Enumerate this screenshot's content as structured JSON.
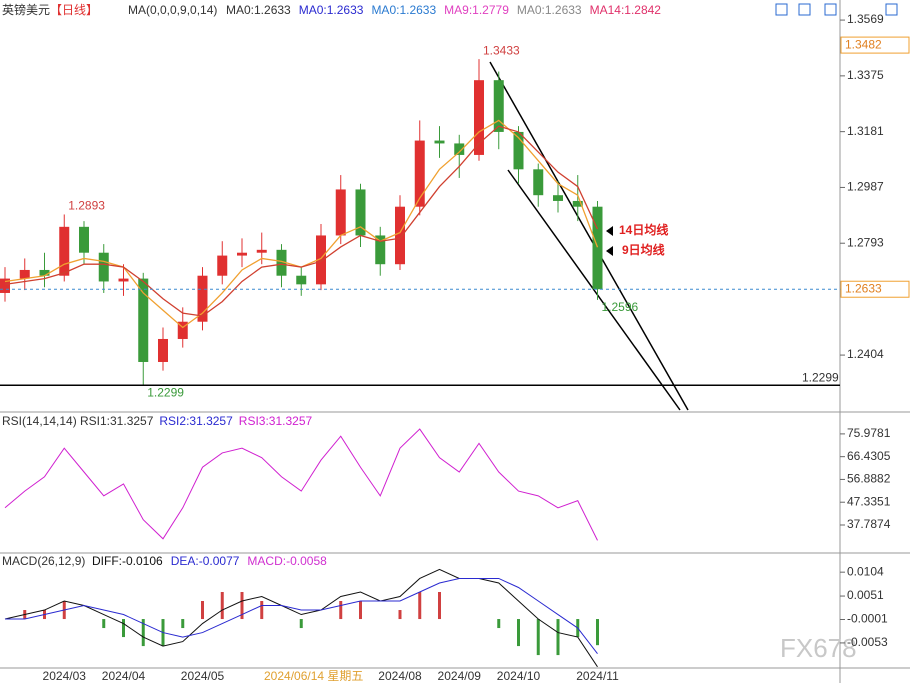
{
  "header": {
    "symbol": "英镑美元",
    "period": "【日线】",
    "watermark": "FX678"
  },
  "chart_data": [
    {
      "type": "candlestick",
      "ma_label": "MA(0,0,0,9,0,14)",
      "ma_texts": [
        "MA0:1.2633",
        "MA0:1.2633",
        "MA0:1.2633",
        "MA9:1.2779",
        "MA0:1.2633",
        "MA14:1.2842"
      ],
      "ma_text_colors": [
        "#333333",
        "#2a2ad0",
        "#2a7ad0",
        "#e040c0",
        "#888888",
        "#e0306a"
      ],
      "categories": [
        null,
        null,
        null,
        "2024/03",
        null,
        null,
        "2024/04",
        null,
        null,
        null,
        "2024/05",
        null,
        null,
        null,
        null,
        null,
        null,
        null,
        null,
        null,
        "2024/08",
        null,
        null,
        "2024/09",
        null,
        null,
        "2024/10",
        null,
        null,
        null,
        "2024/11"
      ],
      "open": [
        1.262,
        1.267,
        1.27,
        1.268,
        1.285,
        1.276,
        1.266,
        1.267,
        1.238,
        1.246,
        1.252,
        1.268,
        1.275,
        1.276,
        1.277,
        1.268,
        1.265,
        1.282,
        1.298,
        1.282,
        1.272,
        1.292,
        1.315,
        1.314,
        1.31,
        1.336,
        1.318,
        1.305,
        1.296,
        1.294,
        1.292
      ],
      "high": [
        1.271,
        1.274,
        1.276,
        1.2893,
        1.287,
        1.279,
        1.272,
        1.269,
        1.25,
        1.257,
        1.271,
        1.28,
        1.281,
        1.283,
        1.279,
        1.271,
        1.286,
        1.303,
        1.3,
        1.285,
        1.296,
        1.322,
        1.32,
        1.317,
        1.3433,
        1.339,
        1.32,
        1.307,
        1.301,
        1.303,
        1.294
      ],
      "low": [
        1.259,
        1.263,
        1.264,
        1.266,
        1.272,
        1.262,
        1.261,
        1.2299,
        1.235,
        1.243,
        1.249,
        1.265,
        1.271,
        1.272,
        1.264,
        1.261,
        1.263,
        1.279,
        1.278,
        1.268,
        1.27,
        1.289,
        1.309,
        1.302,
        1.308,
        1.312,
        1.3,
        1.292,
        1.29,
        1.287,
        1.2596
      ],
      "close": [
        1.267,
        1.27,
        1.268,
        1.285,
        1.276,
        1.266,
        1.267,
        1.238,
        1.246,
        1.252,
        1.268,
        1.275,
        1.276,
        1.277,
        1.268,
        1.265,
        1.282,
        1.298,
        1.282,
        1.272,
        1.292,
        1.315,
        1.314,
        1.31,
        1.336,
        1.318,
        1.305,
        1.296,
        1.294,
        1.292,
        1.2633
      ],
      "up_color": "#e03030",
      "down_color": "#3a9a3a",
      "series": [
        {
          "name": "9日均线",
          "color": "#f0a030",
          "values": [
            1.266,
            1.267,
            1.268,
            1.272,
            1.274,
            1.273,
            1.271,
            1.262,
            1.256,
            1.25,
            1.255,
            1.262,
            1.27,
            1.274,
            1.273,
            1.271,
            1.274,
            1.282,
            1.285,
            1.28,
            1.283,
            1.295,
            1.305,
            1.311,
            1.318,
            1.322,
            1.316,
            1.308,
            1.3,
            1.296,
            1.2779
          ]
        },
        {
          "name": "14日均线",
          "color": "#d04030",
          "values": [
            1.265,
            1.266,
            1.267,
            1.269,
            1.272,
            1.272,
            1.271,
            1.266,
            1.26,
            1.255,
            1.254,
            1.259,
            1.266,
            1.271,
            1.272,
            1.271,
            1.273,
            1.278,
            1.282,
            1.28,
            1.281,
            1.29,
            1.299,
            1.306,
            1.314,
            1.32,
            1.318,
            1.311,
            1.304,
            1.299,
            1.2842
          ]
        }
      ],
      "ylim": [
        1.2213,
        1.3611
      ],
      "yticks": [
        1.3569,
        1.3375,
        1.3181,
        1.2987,
        1.2793,
        1.2404
      ],
      "last_price": 1.2633,
      "support": 1.2299,
      "max_price": 1.3482,
      "crosshair_date": "2024/06/14 星期五"
    },
    {
      "type": "line",
      "title": "RSI(14,14,14)",
      "legend": [
        "RSI1:31.3257",
        "RSI2:31.3257",
        "RSI3:31.3257"
      ],
      "legend_colors": [
        "#333333",
        "#2a2ad0",
        "#d020d0"
      ],
      "series": [
        {
          "name": "RSI1",
          "color": "#d020d0",
          "values": [
            45,
            52,
            58,
            70,
            60,
            50,
            55,
            40,
            32,
            45,
            62,
            68,
            70,
            66,
            58,
            52,
            65,
            75,
            62,
            50,
            70,
            78,
            66,
            60,
            72,
            60,
            52,
            50,
            45,
            48,
            31.3257
          ]
        }
      ],
      "ylim": [
        27.3,
        83.9
      ],
      "yticks": [
        75.9781,
        66.4305,
        56.8882,
        47.3351,
        37.7874
      ]
    },
    {
      "type": "macd",
      "title": "MACD(26,12,9)",
      "series": [
        {
          "name": "DIFF:-0.0106",
          "color": "#111111",
          "values": [
            0.0,
            0.001,
            0.002,
            0.004,
            0.003,
            0.001,
            -0.001,
            -0.004,
            -0.006,
            -0.005,
            -0.001,
            0.002,
            0.004,
            0.005,
            0.003,
            0.001,
            0.002,
            0.005,
            0.006,
            0.004,
            0.005,
            0.009,
            0.011,
            0.009,
            0.009,
            0.008,
            0.004,
            0.0,
            -0.003,
            -0.004,
            -0.0106
          ]
        },
        {
          "name": "DEA:-0.0077",
          "color": "#2a2ad0",
          "values": [
            0.0,
            0.0,
            0.001,
            0.002,
            0.003,
            0.002,
            0.001,
            -0.001,
            -0.003,
            -0.004,
            -0.003,
            -0.001,
            0.001,
            0.003,
            0.003,
            0.002,
            0.002,
            0.003,
            0.004,
            0.004,
            0.004,
            0.006,
            0.008,
            0.009,
            0.009,
            0.009,
            0.007,
            0.004,
            0.001,
            -0.002,
            -0.0077
          ]
        },
        {
          "name": "MACD:-0.0058",
          "color": "#d030d0",
          "values": [
            0,
            0.002,
            0.002,
            0.004,
            0,
            -0.002,
            -0.004,
            -0.006,
            -0.006,
            -0.002,
            0.004,
            0.006,
            0.006,
            0.004,
            0,
            -0.002,
            0,
            0.004,
            0.004,
            0,
            0.002,
            0.006,
            0.006,
            0,
            0,
            -0.002,
            -0.006,
            -0.008,
            -0.008,
            -0.004,
            -0.0058
          ]
        }
      ],
      "up_color": "#d04040",
      "down_color": "#3a9a3a",
      "ylim": [
        -0.0102,
        0.0131
      ],
      "yticks": [
        0.0104,
        0.0051,
        -0.0001,
        -0.0053
      ]
    }
  ]
}
